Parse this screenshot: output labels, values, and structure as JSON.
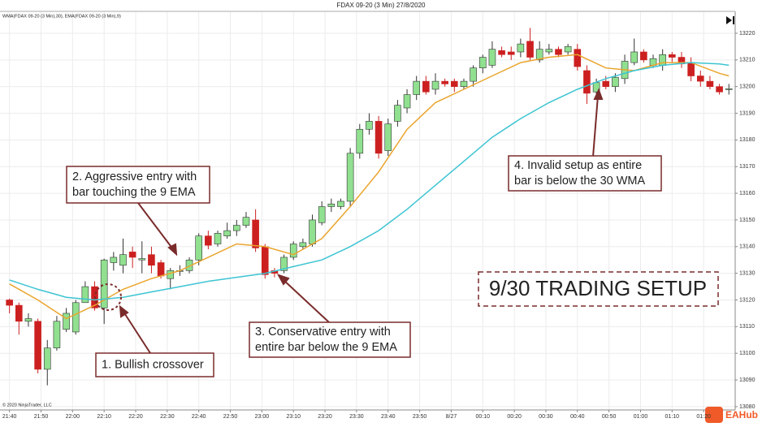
{
  "chart_data": {
    "type": "candlestick",
    "title": "FDAX 09-20 (3 Min)  27/8/2020",
    "indicator_label": "WMA(FDAX 09-20 (3 Min),30), EMA(FDAX 09-20 (3 Min),9)",
    "copyright": "© 2020 NinjaTrader, LLC",
    "setup_title": "9/30 TRADING SETUP",
    "watermark": "EAHub",
    "candles": {
      "up_color": "#90e090",
      "down_color": "#cc2020",
      "x": [
        "21:40",
        "21:43",
        "21:46",
        "21:49",
        "21:52",
        "21:55",
        "21:58",
        "22:01",
        "22:04",
        "22:07",
        "22:10",
        "22:13",
        "22:16",
        "22:19",
        "22:22",
        "22:25",
        "22:28",
        "22:31",
        "22:34",
        "22:37",
        "22:40",
        "22:43",
        "22:46",
        "22:49",
        "22:52",
        "22:55",
        "22:58",
        "23:01",
        "23:04",
        "23:07",
        "23:10",
        "23:13",
        "23:16",
        "23:19",
        "23:22",
        "23:25",
        "23:28",
        "23:31",
        "23:34",
        "23:37",
        "23:40",
        "23:43",
        "23:46",
        "23:49",
        "23:52",
        "23:55",
        "23:58",
        "00:01",
        "00:04",
        "00:07",
        "00:10",
        "00:13",
        "00:16",
        "00:19",
        "00:22",
        "00:25",
        "00:28",
        "00:31",
        "00:34",
        "00:37",
        "00:40",
        "00:43",
        "00:46",
        "00:49",
        "00:52",
        "00:55",
        "00:58",
        "01:01",
        "01:04",
        "01:07",
        "01:10",
        "01:13",
        "01:16",
        "01:19",
        "01:22",
        "01:25",
        "01:28"
      ],
      "open": [
        13120,
        13118,
        13112,
        13112,
        13094,
        13102,
        13109,
        13108,
        13119,
        13125,
        13117,
        13134,
        13133,
        13138,
        13135,
        13137,
        13134,
        13128,
        13131,
        13131,
        13135,
        13144,
        13141,
        13144,
        13146,
        13148,
        13150,
        13140,
        13131,
        13131,
        13136,
        13140,
        13141,
        13149,
        13155,
        13155,
        13157,
        13175,
        13184,
        13187,
        13176,
        13187,
        13192,
        13197,
        13202,
        13199,
        13202,
        13202,
        13200,
        13202,
        13207,
        13208,
        13213.5,
        13213,
        13213,
        13217,
        13210,
        13213,
        13214,
        13213,
        13214,
        13206,
        13198,
        13202,
        13200,
        13203,
        13209,
        13213,
        13208,
        13208,
        13212,
        13211,
        13209,
        13204,
        13202,
        13200,
        13199
      ],
      "high": [
        13120.5,
        13119,
        13115,
        13113,
        13105,
        13114,
        13117,
        13120,
        13127,
        13127,
        13135.5,
        13138,
        13143,
        13140,
        13142,
        13140,
        13135,
        13132,
        13133,
        13136,
        13145,
        13146,
        13146,
        13149,
        13150,
        13153,
        13154,
        13141,
        13132,
        13137,
        13142,
        13143,
        13152,
        13157,
        13158,
        13158,
        13177,
        13186,
        13190,
        13189,
        13188,
        13195,
        13199,
        13204,
        13204,
        13205,
        13203,
        13203,
        13203,
        13208,
        13212,
        13217,
        13215,
        13215,
        13218,
        13222,
        13217,
        13216,
        13215,
        13216,
        13216,
        13208,
        13203,
        13204,
        13205,
        13212,
        13218,
        13214,
        13212,
        13214,
        13213,
        13213,
        13211,
        13206,
        13204,
        13201,
        13201
      ],
      "low": [
        13115,
        13107,
        13110,
        13092.5,
        13088,
        13101,
        13108,
        13107,
        13119,
        13116,
        13111,
        13131,
        13130,
        13132,
        13130,
        13130,
        13128,
        13124,
        13129,
        13130,
        13133,
        13139,
        13140,
        13143,
        13144,
        13147,
        13138,
        13128,
        13128.5,
        13130,
        13135,
        13139,
        13140,
        13148,
        13153,
        13154,
        13155,
        13173,
        13182,
        13173,
        13174,
        13185,
        13190,
        13195,
        13197,
        13197,
        13200,
        13198,
        13199,
        13200,
        13205,
        13207,
        13211,
        13210,
        13211,
        13210,
        13209,
        13212,
        13211,
        13212,
        13206,
        13193.5,
        13196,
        13199,
        13198,
        13201,
        13208,
        13209,
        13207,
        13206,
        13209,
        13207,
        13202,
        13200,
        13199,
        13197,
        13197
      ],
      "close": [
        13118,
        13112,
        13113,
        13094,
        13102,
        13112,
        13115,
        13119,
        13125,
        13117,
        13135,
        13136,
        13137,
        13136,
        13135.5,
        13133,
        13129,
        13131,
        13131,
        13135,
        13144,
        13140.5,
        13145,
        13146,
        13148,
        13151,
        13139.5,
        13129.5,
        13130,
        13136,
        13141,
        13141.5,
        13150,
        13155,
        13156,
        13157,
        13175,
        13184,
        13187,
        13175,
        13186,
        13193,
        13197,
        13202,
        13198,
        13202,
        13201,
        13200,
        13202,
        13207,
        13211,
        13214,
        13212,
        13212,
        13216,
        13211,
        13214,
        13214,
        13212,
        13215,
        13207.5,
        13197.5,
        13201.5,
        13200,
        13203.5,
        13209.5,
        13213,
        13210,
        13210.5,
        13212,
        13211,
        13208.5,
        13204,
        13202,
        13200,
        13198,
        13199.2
      ]
    },
    "series": [
      {
        "name": "EMA 9",
        "color": "#eaa52e",
        "x": [
          "21:40",
          "21:49",
          "21:58",
          "22:07",
          "22:16",
          "22:25",
          "22:34",
          "22:43",
          "22:52",
          "23:01",
          "23:10",
          "23:19",
          "23:28",
          "23:37",
          "23:46",
          "23:55",
          "00:04",
          "00:13",
          "00:22",
          "00:31",
          "00:40",
          "00:49",
          "00:58",
          "01:07",
          "01:16",
          "01:25",
          "01:28"
        ],
        "values": [
          13126,
          13120,
          13113,
          13118,
          13124,
          13128,
          13131,
          13136,
          13141,
          13140,
          13137,
          13143,
          13155,
          13168,
          13184,
          13194,
          13199,
          13204,
          13209,
          13211,
          13212,
          13207,
          13206,
          13209,
          13209,
          13205,
          13204
        ]
      },
      {
        "name": "WMA 30",
        "color": "#3cc4d2",
        "x": [
          "21:40",
          "21:49",
          "21:58",
          "22:07",
          "22:16",
          "22:25",
          "22:34",
          "22:43",
          "22:52",
          "23:01",
          "23:10",
          "23:19",
          "23:28",
          "23:37",
          "23:46",
          "23:55",
          "00:04",
          "00:13",
          "00:22",
          "00:31",
          "00:40",
          "00:49",
          "00:58",
          "01:07",
          "01:16",
          "01:25",
          "01:28"
        ],
        "values": [
          13127.5,
          13124,
          13121,
          13120,
          13121,
          13123,
          13125,
          13127,
          13128.5,
          13130,
          13132.5,
          13135,
          13140,
          13146,
          13154,
          13163,
          13172,
          13181,
          13188,
          13194,
          13199,
          13203,
          13206,
          13208,
          13209,
          13208.5,
          13208
        ]
      }
    ],
    "xlim": [
      "21:37",
      "01:30"
    ],
    "xticks": [
      "21:40",
      "21:50",
      "22:00",
      "22:10",
      "22:20",
      "22:30",
      "22:40",
      "22:50",
      "23:00",
      "23:10",
      "23:20",
      "23:30",
      "23:40",
      "23:50",
      {
        "value": "00:00",
        "label": "8/27"
      },
      "00:10",
      "00:20",
      "00:30",
      "00:40",
      "00:50",
      "01:00",
      "01:10",
      "01:20"
    ],
    "ylim": [
      13079,
      13228
    ],
    "yticks": [
      13080,
      13090,
      13100,
      13110,
      13120,
      13130,
      13140,
      13150,
      13160,
      13170,
      13180,
      13190,
      13200,
      13210,
      13220
    ],
    "grid": true,
    "annotations": [
      {
        "lines": [
          "1. Bullish crossover"
        ]
      },
      {
        "lines": [
          "2. Aggressive entry with",
          "bar touching the 9 EMA"
        ]
      },
      {
        "lines": [
          "3. Conservative entry with",
          "entire bar below the 9 EMA"
        ]
      },
      {
        "lines": [
          "4. Invalid setup as entire",
          "bar is below the 30 WMA"
        ]
      }
    ]
  }
}
